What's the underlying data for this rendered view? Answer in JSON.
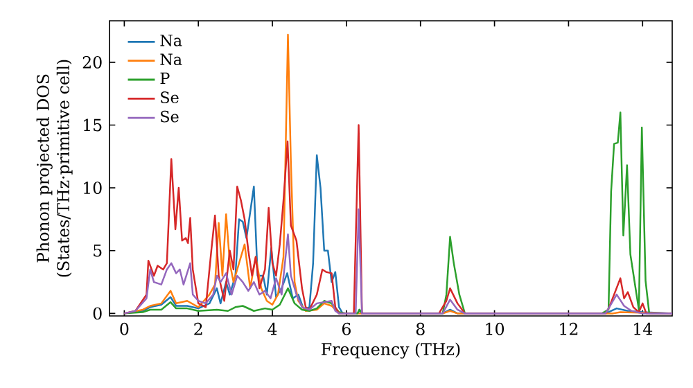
{
  "chart_data": {
    "type": "line",
    "xlabel": "Frequency (THz)",
    "ylabel": "Phonon projected DOS (States/THz·primitive cell)",
    "xlim": [
      -0.4,
      14.8
    ],
    "ylim": [
      -0.2,
      23.3
    ],
    "xticks": [
      0,
      2,
      4,
      6,
      8,
      10,
      12,
      14
    ],
    "yticks": [
      0,
      5,
      10,
      15,
      20
    ],
    "grid": false,
    "legend": "top left",
    "marker": "none",
    "line_style": "solid",
    "series": [
      {
        "name": "Na",
        "color": "#1f77b4",
        "x": [
          0,
          0.5,
          0.7,
          1.0,
          1.25,
          1.4,
          1.7,
          2.0,
          2.3,
          2.5,
          2.6,
          2.75,
          2.85,
          3.0,
          3.1,
          3.2,
          3.3,
          3.5,
          3.6,
          3.75,
          3.85,
          3.97,
          4.1,
          4.25,
          4.4,
          4.55,
          4.7,
          4.85,
          5.0,
          5.1,
          5.2,
          5.3,
          5.4,
          5.5,
          5.6,
          5.7,
          5.8,
          5.9,
          6.3,
          6.35,
          6.4,
          8.6,
          8.8,
          9.0,
          13.0,
          13.3,
          13.6,
          14.0,
          14.8
        ],
        "values": [
          0,
          0.2,
          0.5,
          0.7,
          1.3,
          0.6,
          0.6,
          0.4,
          0.8,
          2.0,
          0.8,
          2.5,
          1.5,
          3,
          7.5,
          7.3,
          6,
          10.1,
          3,
          3,
          1.5,
          5.2,
          1.3,
          2,
          3.2,
          1.2,
          1.5,
          0.3,
          0.5,
          4,
          12.6,
          10,
          5,
          5,
          2.5,
          3.3,
          0.5,
          0,
          0,
          0.3,
          0,
          0,
          0.3,
          0,
          0,
          0.4,
          0.2,
          0.1,
          0
        ]
      },
      {
        "name": "Na",
        "color": "#ff7f0e",
        "x": [
          0,
          0.5,
          0.7,
          1.0,
          1.25,
          1.4,
          1.7,
          2.0,
          2.3,
          2.45,
          2.55,
          2.65,
          2.75,
          2.85,
          2.95,
          3.1,
          3.25,
          3.4,
          3.55,
          3.7,
          3.85,
          4.0,
          4.15,
          4.3,
          4.42,
          4.5,
          4.6,
          4.7,
          4.9,
          5.2,
          5.4,
          5.6,
          5.8,
          8.6,
          8.8,
          9.0,
          13.2,
          13.4,
          14.8
        ],
        "values": [
          0,
          0.3,
          0.6,
          0.8,
          1.8,
          0.8,
          1,
          0.5,
          1.5,
          2.3,
          7.2,
          3,
          7.9,
          4,
          2.5,
          4,
          5.5,
          2,
          4.5,
          2,
          1,
          0.7,
          1.5,
          4.5,
          22.2,
          12,
          2.5,
          1.0,
          0.2,
          0.3,
          0.8,
          0.6,
          0,
          0,
          0.2,
          0,
          0,
          0.1,
          0
        ]
      },
      {
        "name": "P",
        "color": "#2ca02c",
        "x": [
          0,
          0.5,
          0.7,
          1.0,
          1.25,
          1.4,
          1.7,
          2.0,
          2.5,
          2.8,
          3.0,
          3.2,
          3.5,
          3.8,
          4.0,
          4.2,
          4.42,
          4.6,
          4.8,
          5.0,
          5.2,
          5.4,
          5.6,
          5.8,
          6.0,
          6.3,
          6.35,
          6.45,
          8.6,
          8.7,
          8.8,
          8.9,
          9.05,
          9.2,
          12.9,
          13.08,
          13.15,
          13.23,
          13.33,
          13.4,
          13.48,
          13.58,
          13.67,
          13.8,
          13.9,
          13.98,
          14.08,
          14.18,
          14.8
        ],
        "values": [
          0,
          0.1,
          0.3,
          0.3,
          0.9,
          0.4,
          0.4,
          0.2,
          0.3,
          0.2,
          0.5,
          0.6,
          0.2,
          0.4,
          0.3,
          0.7,
          2.0,
          0.8,
          0.3,
          0.2,
          0.4,
          1.0,
          0.8,
          0.1,
          0,
          0,
          0.3,
          0,
          0,
          1.5,
          6.1,
          4,
          1.5,
          0,
          0,
          0.3,
          9.7,
          13.5,
          13.6,
          16.0,
          6.2,
          11.8,
          4.7,
          2.2,
          0.3,
          14.8,
          2.6,
          0,
          0
        ]
      },
      {
        "name": "Se",
        "color": "#d62728",
        "x": [
          0,
          0.3,
          0.6,
          0.65,
          0.8,
          0.9,
          1.05,
          1.15,
          1.27,
          1.38,
          1.47,
          1.56,
          1.66,
          1.72,
          1.78,
          1.85,
          2.0,
          2.2,
          2.35,
          2.45,
          2.55,
          2.7,
          2.85,
          2.95,
          3.05,
          3.15,
          3.25,
          3.35,
          3.45,
          3.55,
          3.65,
          3.8,
          3.9,
          4.0,
          4.1,
          4.2,
          4.3,
          4.41,
          4.5,
          4.65,
          4.8,
          4.9,
          5.0,
          5.2,
          5.35,
          5.45,
          5.6,
          5.7,
          5.8,
          6.2,
          6.33,
          6.42,
          8.5,
          8.7,
          8.8,
          9.0,
          9.2,
          13.0,
          13.1,
          13.4,
          13.5,
          13.6,
          13.75,
          13.9,
          14.0,
          14.1,
          14.8
        ],
        "values": [
          0,
          0.2,
          1.5,
          4.2,
          3,
          3.8,
          3.5,
          4,
          12.3,
          6.7,
          10,
          5.8,
          6,
          5.6,
          7.6,
          3.5,
          0.8,
          0.5,
          5,
          7.8,
          3,
          1,
          5,
          3.5,
          10.1,
          9,
          7.5,
          5,
          3,
          4.5,
          2,
          3.5,
          8.4,
          4,
          3,
          5.5,
          9,
          13.7,
          7,
          5.8,
          2,
          0.5,
          0.3,
          1.5,
          3.5,
          3.3,
          3.2,
          0.5,
          0,
          0,
          15.0,
          0,
          0,
          1,
          2.0,
          0.8,
          0,
          0,
          0.5,
          2.8,
          1.2,
          1.7,
          0.5,
          0.1,
          0.8,
          0,
          0
        ]
      },
      {
        "name": "Se",
        "color": "#9467bd",
        "x": [
          0,
          0.3,
          0.6,
          0.7,
          0.8,
          1.0,
          1.15,
          1.27,
          1.4,
          1.5,
          1.6,
          1.78,
          1.85,
          2.0,
          2.2,
          2.4,
          2.5,
          2.6,
          2.75,
          2.9,
          3.05,
          3.2,
          3.35,
          3.5,
          3.65,
          3.8,
          3.95,
          4.1,
          4.25,
          4.42,
          4.5,
          4.65,
          4.8,
          5.0,
          5.2,
          5.4,
          5.6,
          5.7,
          5.8,
          6.25,
          6.33,
          6.42,
          8.6,
          8.8,
          9.0,
          9.2,
          13.0,
          13.1,
          13.3,
          13.5,
          13.7,
          14.0,
          14.8
        ],
        "values": [
          0,
          0.2,
          1.2,
          3.5,
          2.5,
          2.3,
          3.5,
          4,
          3.2,
          3.5,
          2.3,
          4,
          1.5,
          1.0,
          0.8,
          1.5,
          3,
          2.5,
          3.2,
          1.5,
          3,
          2.5,
          1.8,
          2.5,
          1.5,
          1.8,
          1.2,
          2.8,
          1.5,
          6.3,
          3,
          1.5,
          0.5,
          0.3,
          0.8,
          0.9,
          1,
          0.2,
          0,
          0,
          8.3,
          0,
          0,
          1.1,
          0.3,
          0,
          0,
          0.5,
          1.5,
          0.6,
          0.2,
          0,
          0
        ]
      }
    ]
  }
}
